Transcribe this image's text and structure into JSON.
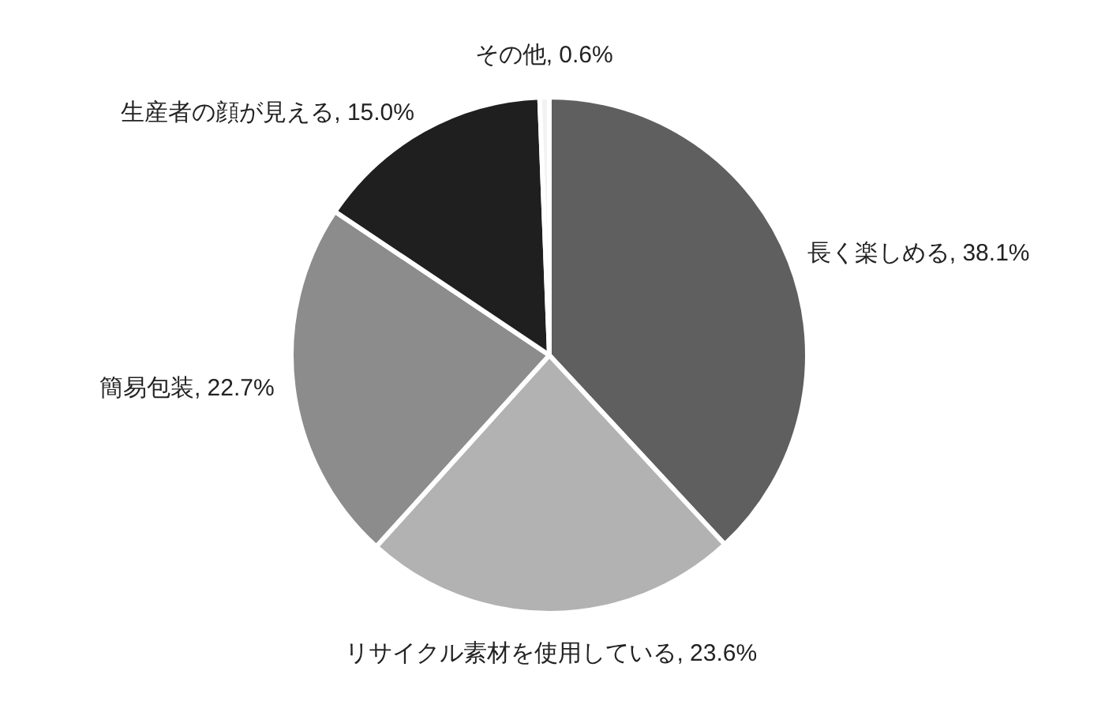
{
  "chart_data": {
    "type": "pie",
    "categories": [
      "長く楽しめる",
      "リサイクル素材を使用している",
      "簡易包装",
      "生産者の顔が見える",
      "その他"
    ],
    "values": [
      38.1,
      23.6,
      22.7,
      15.0,
      0.6
    ],
    "value_labels": [
      "38.1%",
      "23.6%",
      "22.7%",
      "15.0%",
      "0.6%"
    ],
    "colors": [
      "#5f5f5f",
      "#b2b2b2",
      "#8c8c8c",
      "#1f1f1f",
      "#f2f2f2"
    ],
    "legend": false
  }
}
